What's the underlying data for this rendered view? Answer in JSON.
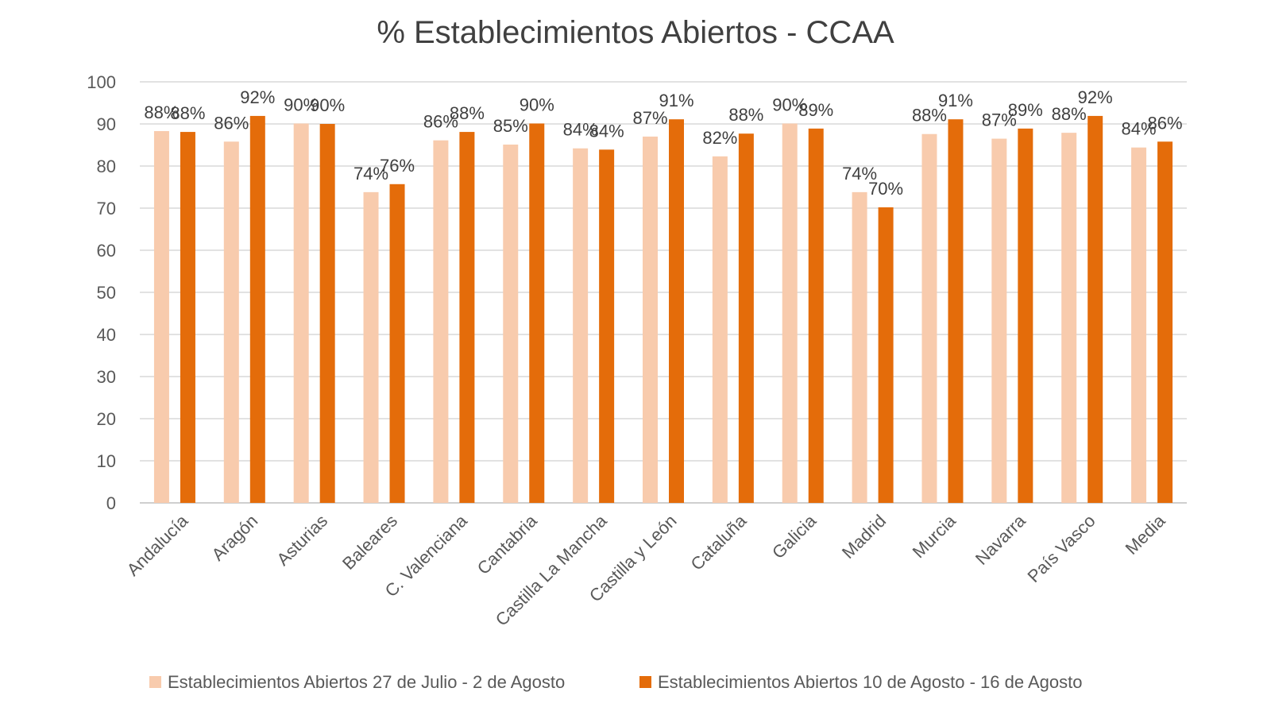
{
  "chart_data": {
    "type": "bar",
    "title": "% Establecimientos  Abiertos - CCAA",
    "xlabel": "",
    "ylabel": "",
    "ylim": [
      0,
      100
    ],
    "yticks": [
      0,
      10,
      20,
      30,
      40,
      50,
      60,
      70,
      80,
      90,
      100
    ],
    "grid": true,
    "legend_position": "bottom",
    "categories": [
      "Andalucía",
      "Aragón",
      "Asturias",
      "Baleares",
      "C. Valenciana",
      "Cantabria",
      "Castilla La Mancha",
      "Castilla y León",
      "Cataluña",
      "Galicia",
      "Madrid",
      "Murcia",
      "Navarra",
      "País Vasco",
      "Media"
    ],
    "series": [
      {
        "name": "Establecimientos Abiertos 27 de Julio - 2 de Agosto",
        "color": "#F8CBAD",
        "values": [
          88.3,
          85.8,
          90.1,
          73.8,
          86.1,
          85.1,
          84.2,
          87.0,
          82.3,
          90.1,
          73.8,
          87.6,
          86.5,
          87.9,
          84.4
        ],
        "labels": [
          "88%",
          "86%",
          "90%",
          "74%",
          "86%",
          "85%",
          "84%",
          "87%",
          "82%",
          "90%",
          "74%",
          "88%",
          "87%",
          "88%",
          "84%"
        ]
      },
      {
        "name": "Establecimientos Abiertos 10 de Agosto - 16 de Agosto",
        "color": "#E46C0A",
        "values": [
          88.1,
          91.9,
          90.0,
          75.7,
          88.1,
          90.1,
          83.9,
          91.1,
          87.7,
          88.9,
          70.2,
          91.1,
          88.9,
          91.9,
          85.8
        ],
        "labels": [
          "88%",
          "92%",
          "90%",
          "76%",
          "88%",
          "90%",
          "84%",
          "91%",
          "88%",
          "89%",
          "70%",
          "91%",
          "89%",
          "92%",
          "86%"
        ]
      }
    ]
  }
}
